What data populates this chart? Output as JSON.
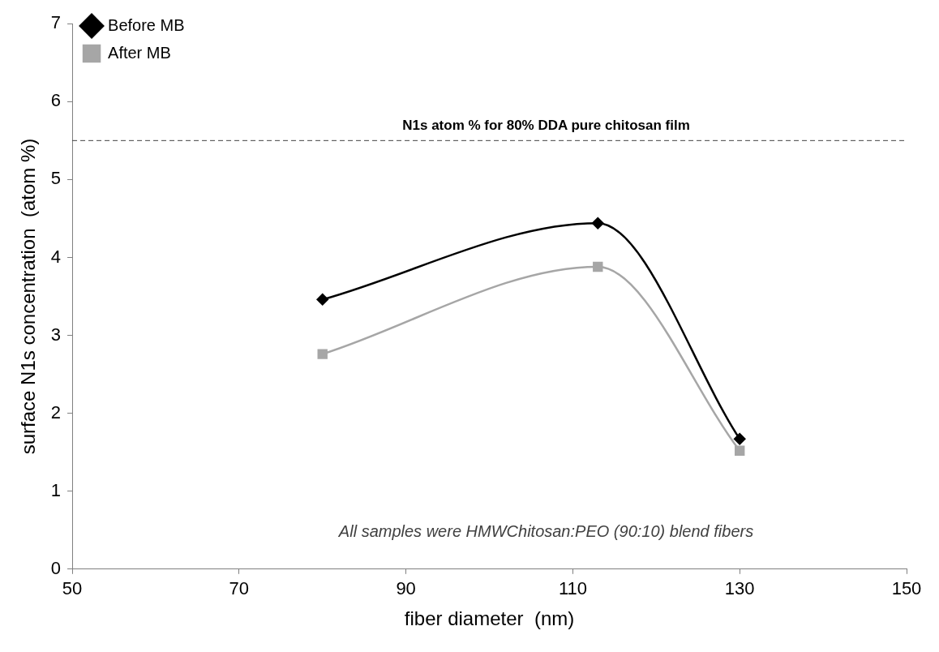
{
  "chart_data": {
    "type": "line",
    "xlabel": "fiber diameter  (nm)",
    "ylabel": "surface N1s concentration  (atom %)",
    "xlim": [
      50,
      150
    ],
    "xticks": [
      50,
      70,
      90,
      110,
      130,
      150
    ],
    "ylim": [
      0,
      7
    ],
    "yticks": [
      0,
      1,
      2,
      3,
      4,
      5,
      6,
      7
    ],
    "grid": false,
    "legend": "top left",
    "series": [
      {
        "name": "Before MB",
        "color": "#000000",
        "marker": "diamond",
        "x": [
          80,
          113,
          130
        ],
        "values": [
          3.46,
          4.44,
          1.67
        ]
      },
      {
        "name": "After MB",
        "color": "#a6a6a6",
        "marker": "square",
        "x": [
          80,
          113,
          130
        ],
        "values": [
          2.76,
          3.88,
          1.52
        ]
      }
    ],
    "ref_lines": [
      {
        "axis": "y",
        "value": 5.5,
        "label": "N1s atom % for 80% DDA pure chitosan film",
        "color": "#404040",
        "line_style": "dashed"
      }
    ],
    "annotations": [
      "All samples were HMWChitosan:PEO (90:10) blend fibers"
    ]
  }
}
